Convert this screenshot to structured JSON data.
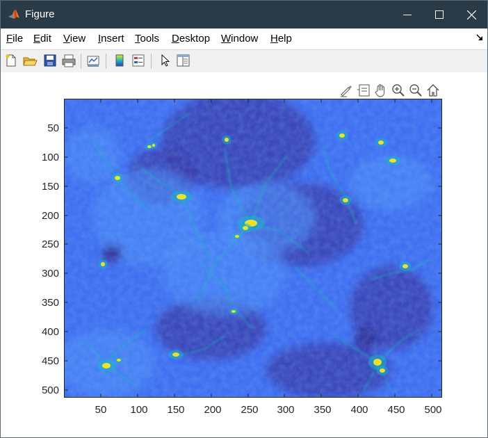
{
  "window": {
    "title": "Figure",
    "minimize_icon": "minimize-icon",
    "maximize_icon": "maximize-icon",
    "close_icon": "close-icon",
    "app_icon": "matlab-logo-icon"
  },
  "menubar": {
    "items": [
      {
        "accel": "F",
        "rest": "ile"
      },
      {
        "accel": "E",
        "rest": "dit"
      },
      {
        "accel": "V",
        "rest": "iew"
      },
      {
        "accel": "I",
        "rest": "nsert"
      },
      {
        "accel": "T",
        "rest": "ools"
      },
      {
        "accel": "D",
        "rest": "esktop"
      },
      {
        "accel": "W",
        "rest": "indow"
      },
      {
        "accel": "H",
        "rest": "elp"
      }
    ],
    "dock_icon": "dock-arrow-icon"
  },
  "toolbar": {
    "icons": [
      "new-figure-icon",
      "open-file-icon",
      "save-icon",
      "print-icon",
      "link-plot-icon",
      "colorbar-icon",
      "legend-icon",
      "pointer-icon",
      "property-inspector-icon"
    ]
  },
  "axes_toolbar": {
    "icons": [
      "brush-icon",
      "datatip-icon",
      "pan-icon",
      "zoom-in-icon",
      "zoom-out-icon",
      "home-icon"
    ]
  },
  "plot": {
    "y_ticks": [
      "50",
      "100",
      "150",
      "200",
      "250",
      "300",
      "350",
      "400",
      "450",
      "500"
    ],
    "x_ticks": [
      "50",
      "100",
      "150",
      "200",
      "250",
      "300",
      "350",
      "400",
      "450",
      "500"
    ],
    "colormap": "parula",
    "colors": {
      "low": "#3a3aa8",
      "mid": "#3f6ef0",
      "high": "#1db4c8",
      "peak": "#f4e626"
    }
  }
}
